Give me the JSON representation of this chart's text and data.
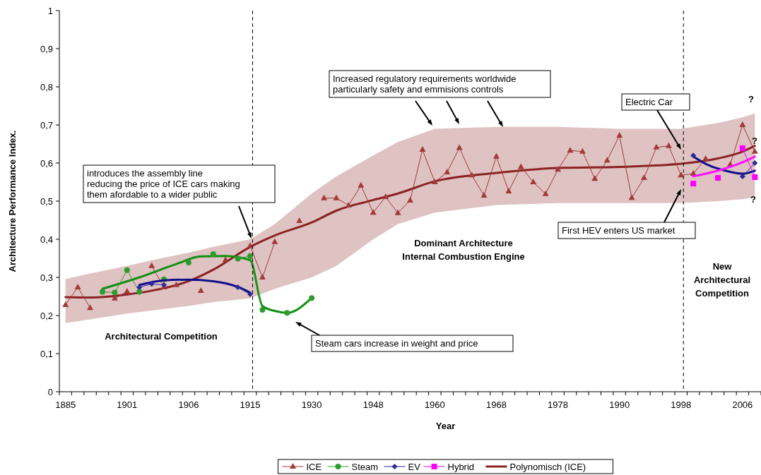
{
  "chart_data": {
    "type": "line",
    "xlabel": "Year",
    "ylabel": "Architecture Performance Index.",
    "categories": [
      "1885",
      null,
      null,
      null,
      null,
      "1901",
      null,
      null,
      null,
      null,
      "1906",
      null,
      null,
      null,
      null,
      "1915",
      null,
      null,
      null,
      null,
      "1930",
      null,
      null,
      null,
      null,
      "1948",
      null,
      null,
      null,
      null,
      "1960",
      null,
      null,
      null,
      null,
      "1968",
      null,
      null,
      null,
      null,
      "1978",
      null,
      null,
      null,
      null,
      "1990",
      null,
      null,
      null,
      null,
      "1998",
      null,
      null,
      null,
      null,
      "2006",
      null
    ],
    "ylim": [
      0,
      1
    ],
    "yticks": [
      0,
      {
        "value": 0.1,
        "label": "0,1"
      },
      {
        "value": 0.2,
        "label": "0,2"
      },
      {
        "value": 0.3,
        "label": "0,3"
      },
      {
        "value": 0.4,
        "label": "0,4"
      },
      {
        "value": 0.5,
        "label": "0,5"
      },
      {
        "value": 0.6,
        "label": "0,6"
      },
      {
        "value": 0.7,
        "label": "0,7"
      },
      {
        "value": 0.8,
        "label": "0,8"
      },
      {
        "value": 0.9,
        "label": "0,9"
      },
      1
    ],
    "grid": false,
    "legend": "bottom",
    "series": [
      {
        "name": "Polynomisch (ICE)",
        "color": "#8b2323",
        "marker": "none",
        "values": [
          0.248,
          null,
          0.247,
          null,
          null,
          0.255,
          null,
          0.265,
          null,
          null,
          0.29,
          null,
          0.32,
          null,
          null,
          0.38,
          null,
          0.41,
          null,
          null,
          0.444,
          null,
          0.475,
          null,
          null,
          0.503,
          null,
          0.52,
          null,
          null,
          0.552,
          null,
          null,
          null,
          null,
          0.574,
          null,
          null,
          null,
          null,
          0.587,
          null,
          null,
          null,
          null,
          0.59,
          null,
          null,
          null,
          null,
          0.598,
          null,
          null,
          0.612,
          null,
          0.63,
          0.645
        ],
        "lower": [
          0.18,
          null,
          0.19,
          null,
          null,
          0.205,
          null,
          0.213,
          null,
          null,
          0.225,
          null,
          0.235,
          null,
          null,
          0.245,
          null,
          0.27,
          null,
          null,
          0.3,
          null,
          0.33,
          null,
          null,
          0.4,
          null,
          0.44,
          null,
          null,
          0.47,
          null,
          null,
          null,
          null,
          0.49,
          null,
          null,
          null,
          null,
          0.495,
          null,
          null,
          null,
          null,
          0.495,
          null,
          null,
          null,
          null,
          0.495,
          null,
          null,
          0.5,
          null,
          0.505,
          0.51
        ],
        "upper": [
          0.296,
          null,
          0.31,
          null,
          null,
          0.33,
          null,
          0.345,
          null,
          null,
          0.365,
          null,
          0.38,
          null,
          null,
          0.4,
          null,
          0.44,
          null,
          null,
          0.52,
          null,
          0.565,
          null,
          null,
          0.62,
          null,
          0.655,
          null,
          null,
          0.69,
          null,
          null,
          null,
          null,
          0.695,
          null,
          null,
          null,
          null,
          0.695,
          null,
          null,
          null,
          null,
          0.69,
          null,
          null,
          null,
          null,
          0.69,
          null,
          null,
          0.705,
          null,
          0.72,
          0.73
        ]
      },
      {
        "name": "ICE",
        "color": "#a33a3a",
        "marker": "triangle",
        "values": [
          0.228,
          0.274,
          0.22,
          null,
          0.245,
          0.263,
          null,
          0.33,
          0.274,
          0.28,
          null,
          0.265,
          null,
          0.346,
          null,
          0.383,
          0.3,
          0.393,
          null,
          0.448,
          null,
          0.508,
          0.508,
          0.489,
          0.541,
          0.47,
          0.511,
          0.469,
          0.502,
          0.635,
          0.55,
          0.576,
          0.64,
          0.568,
          0.515,
          0.617,
          0.526,
          0.59,
          0.55,
          0.519,
          0.583,
          0.633,
          0.63,
          0.559,
          0.607,
          0.672,
          0.509,
          0.561,
          0.641,
          0.645,
          0.568,
          0.572,
          0.611,
          null,
          0.596,
          0.7,
          0.63
        ]
      },
      {
        "color": "#109010",
        "marker": "none",
        "values": [
          null,
          null,
          null,
          0.27,
          null,
          null,
          0.3,
          null,
          null,
          0.335,
          null,
          0.355,
          null,
          0.356,
          null,
          0.345,
          0.225,
          0.212,
          0.207,
          null,
          0.246,
          null,
          null,
          null,
          null,
          null,
          null,
          null,
          null,
          null,
          null,
          null,
          null,
          null,
          null,
          null,
          null,
          null,
          null,
          null,
          null,
          null,
          null,
          null,
          null,
          null,
          null,
          null,
          null,
          null,
          null,
          null,
          null,
          null,
          null,
          null,
          null
        ]
      },
      {
        "name": "Steam",
        "color": "#2e9b2e",
        "marker": "circle",
        "values": [
          null,
          null,
          null,
          0.262,
          0.26,
          0.319,
          0.262,
          null,
          0.295,
          null,
          0.339,
          null,
          0.361,
          null,
          0.349,
          0.356,
          0.215,
          null,
          0.207,
          null,
          0.246,
          null,
          null,
          null,
          null,
          null,
          null,
          null,
          null,
          null,
          null,
          null,
          null,
          null,
          null,
          null,
          null,
          null,
          null,
          null,
          null,
          null,
          null,
          null,
          null,
          null,
          null,
          null,
          null,
          null,
          null,
          null,
          null,
          null,
          null,
          null,
          null
        ]
      },
      {
        "color": "#10108b",
        "marker": "none",
        "values": [
          null,
          null,
          null,
          null,
          null,
          null,
          0.28,
          null,
          0.292,
          null,
          0.294,
          null,
          0.29,
          null,
          0.275,
          0.26,
          null,
          null,
          null,
          null,
          null,
          null,
          null,
          null,
          null,
          null,
          null,
          null,
          null,
          null,
          null,
          null,
          null,
          null,
          null,
          null,
          null,
          null,
          null,
          null,
          null,
          null,
          null,
          null,
          null,
          null,
          null,
          null,
          null,
          null,
          null,
          null,
          null,
          null,
          null,
          null,
          null
        ]
      },
      {
        "color": "#10108b",
        "marker": "none",
        "values": [
          null,
          null,
          null,
          null,
          null,
          null,
          null,
          null,
          null,
          null,
          null,
          null,
          null,
          null,
          null,
          null,
          null,
          null,
          null,
          null,
          null,
          null,
          null,
          null,
          null,
          null,
          null,
          null,
          null,
          null,
          null,
          null,
          null,
          null,
          null,
          null,
          null,
          null,
          null,
          null,
          null,
          null,
          null,
          null,
          null,
          null,
          null,
          null,
          null,
          null,
          null,
          0.617,
          0.598,
          null,
          0.577,
          0.572,
          0.58
        ]
      },
      {
        "name": "EV",
        "color": "#2a2a9a",
        "marker": "diamond",
        "values": [
          null,
          null,
          null,
          null,
          null,
          null,
          0.274,
          0.283,
          0.28,
          null,
          null,
          null,
          null,
          null,
          0.274,
          0.256,
          null,
          null,
          null,
          null,
          null,
          null,
          null,
          null,
          null,
          null,
          null,
          null,
          null,
          null,
          null,
          null,
          null,
          null,
          null,
          null,
          null,
          null,
          null,
          null,
          null,
          null,
          null,
          null,
          null,
          null,
          null,
          null,
          null,
          null,
          null,
          0.62,
          null,
          null,
          null,
          0.565,
          0.6
        ]
      },
      {
        "color": "#ff10ff",
        "marker": "none",
        "values": [
          null,
          null,
          null,
          null,
          null,
          null,
          null,
          null,
          null,
          null,
          null,
          null,
          null,
          null,
          null,
          null,
          null,
          null,
          null,
          null,
          null,
          null,
          null,
          null,
          null,
          null,
          null,
          null,
          null,
          null,
          null,
          null,
          null,
          null,
          null,
          null,
          null,
          null,
          null,
          null,
          null,
          null,
          null,
          null,
          null,
          null,
          null,
          null,
          null,
          null,
          null,
          0.565,
          null,
          0.58,
          null,
          0.602,
          0.617
        ]
      },
      {
        "name": "Hybrid",
        "color": "#ff00ff",
        "marker": "square",
        "values": [
          null,
          null,
          null,
          null,
          null,
          null,
          null,
          null,
          null,
          null,
          null,
          null,
          null,
          null,
          null,
          null,
          null,
          null,
          null,
          null,
          null,
          null,
          null,
          null,
          null,
          null,
          null,
          null,
          null,
          null,
          null,
          null,
          null,
          null,
          null,
          null,
          null,
          null,
          null,
          null,
          null,
          null,
          null,
          null,
          null,
          null,
          null,
          null,
          null,
          null,
          null,
          0.546,
          null,
          0.561,
          null,
          0.639,
          0.563
        ]
      }
    ],
    "annotations": [
      "introduces the assembly line\nreducing the price of ICE cars making\nthem afordable to a wider public",
      "Increased regulatory requirements worldwide\nparticularly safety and emmisions controls",
      "Electric Car",
      "First HEV enters US market",
      "Steam cars increase in weight and price",
      "Architectural Competition",
      "Dominant Architecture\nInternal Combustion Engine",
      "New\nArchitectural\nCompetition",
      "?",
      "?",
      "?"
    ]
  }
}
